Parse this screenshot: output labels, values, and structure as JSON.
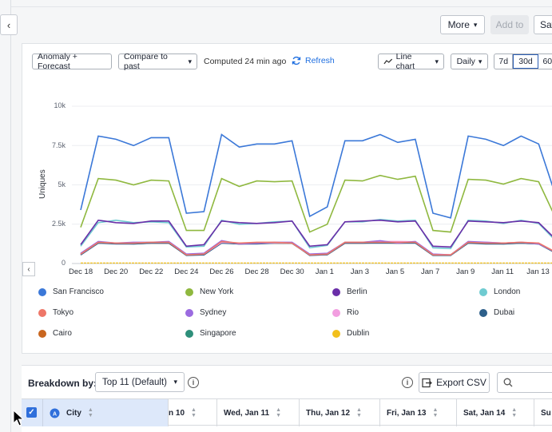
{
  "toolbar": {
    "more_label": "More",
    "add_to_label": "Add to",
    "save_label": "Sav"
  },
  "controls": {
    "anomaly_label": "Anomaly + Forecast",
    "compare_label": "Compare to past",
    "computed_text": "Computed 24 min ago",
    "refresh_label": "Refresh",
    "chart_type_label": "Line chart",
    "interval_label": "Daily",
    "ranges": [
      "7d",
      "30d",
      "60"
    ],
    "active_range": "30d"
  },
  "chart_data": {
    "type": "line",
    "ylabel": "Uniques",
    "y_ticks": [
      "10k",
      "7.5k",
      "5k",
      "2.5k",
      "0"
    ],
    "ylim": [
      0,
      10000
    ],
    "x_tick_labels": [
      "Dec 18",
      "Dec 20",
      "Dec 22",
      "Dec 24",
      "Dec 26",
      "Dec 28",
      "Dec 30",
      "Jan 1",
      "Jan 3",
      "Jan 5",
      "Jan 7",
      "Jan 9",
      "Jan 11",
      "Jan 13"
    ],
    "x": [
      "Dec 18",
      "Dec 19",
      "Dec 20",
      "Dec 21",
      "Dec 22",
      "Dec 23",
      "Dec 24",
      "Dec 25",
      "Dec 26",
      "Dec 27",
      "Dec 28",
      "Dec 29",
      "Dec 30",
      "Dec 31",
      "Jan 1",
      "Jan 2",
      "Jan 3",
      "Jan 4",
      "Jan 5",
      "Jan 6",
      "Jan 7",
      "Jan 8",
      "Jan 9",
      "Jan 10",
      "Jan 11",
      "Jan 12",
      "Jan 13",
      "Jan 14"
    ],
    "series": [
      {
        "name": "San Francisco",
        "color": "#3b78d8",
        "values": [
          3400,
          8100,
          7900,
          7500,
          8000,
          8000,
          3200,
          3300,
          8200,
          7400,
          7600,
          7600,
          7800,
          3000,
          3600,
          7800,
          7800,
          8200,
          7700,
          7900,
          3200,
          2900,
          8100,
          7900,
          7500,
          8100,
          7600,
          4200
        ]
      },
      {
        "name": "New York",
        "color": "#8fb83f",
        "values": [
          2300,
          5400,
          5300,
          5000,
          5300,
          5250,
          2100,
          2100,
          5400,
          4900,
          5250,
          5200,
          5250,
          2000,
          2500,
          5300,
          5250,
          5600,
          5350,
          5550,
          2100,
          2000,
          5350,
          5300,
          5050,
          5400,
          5200,
          2800
        ]
      },
      {
        "name": "Berlin",
        "color": "#6a2ea8",
        "values": [
          1200,
          2750,
          2600,
          2550,
          2700,
          2700,
          1100,
          1200,
          2700,
          2600,
          2550,
          2600,
          2700,
          1100,
          1200,
          2650,
          2700,
          2750,
          2650,
          2700,
          1100,
          1050,
          2700,
          2650,
          2600,
          2700,
          2600,
          1500
        ]
      },
      {
        "name": "London",
        "color": "#6fcbd1",
        "values": [
          1100,
          2600,
          2750,
          2600,
          2650,
          2600,
          1050,
          1100,
          2750,
          2500,
          2550,
          2650,
          2700,
          1000,
          1150,
          2650,
          2650,
          2800,
          2700,
          2750,
          1000,
          950,
          2750,
          2700,
          2550,
          2750,
          2550,
          1400
        ]
      },
      {
        "name": "Tokyo",
        "color": "#ee7768",
        "values": [
          600,
          1350,
          1300,
          1300,
          1350,
          1350,
          550,
          600,
          1400,
          1300,
          1350,
          1350,
          1300,
          550,
          600,
          1350,
          1350,
          1350,
          1350,
          1350,
          550,
          550,
          1350,
          1300,
          1300,
          1350,
          1300,
          700
        ]
      },
      {
        "name": "Sydney",
        "color": "#9b6be0",
        "values": [
          650,
          1400,
          1300,
          1350,
          1350,
          1400,
          600,
          650,
          1450,
          1250,
          1300,
          1350,
          1350,
          600,
          650,
          1350,
          1350,
          1450,
          1300,
          1400,
          600,
          550,
          1400,
          1350,
          1300,
          1350,
          1250,
          700
        ]
      },
      {
        "name": "Rio",
        "color": "#f29ee0",
        "values": [
          600,
          1350,
          1300,
          1300,
          1350,
          1350,
          580,
          600,
          1350,
          1300,
          1300,
          1320,
          1300,
          560,
          600,
          1350,
          1350,
          1400,
          1400,
          1380,
          580,
          560,
          1350,
          1350,
          1300,
          1350,
          1300,
          680
        ]
      },
      {
        "name": "Dubai",
        "color": "#2d5f8a",
        "values": [
          550,
          1300,
          1250,
          1250,
          1300,
          1300,
          520,
          550,
          1300,
          1250,
          1250,
          1300,
          1300,
          520,
          560,
          1300,
          1300,
          1300,
          1300,
          1300,
          520,
          520,
          1300,
          1250,
          1250,
          1300,
          1250,
          650
        ]
      },
      {
        "name": "Cairo",
        "color": "#c9661f",
        "values": [
          560,
          1320,
          1280,
          1260,
          1300,
          1300,
          540,
          560,
          1320,
          1250,
          1270,
          1300,
          1300,
          540,
          570,
          1300,
          1300,
          1320,
          1300,
          1320,
          540,
          530,
          1320,
          1270,
          1260,
          1320,
          1260,
          660
        ]
      },
      {
        "name": "Singapore",
        "color": "#2e8f7a",
        "values": [
          600,
          1300,
          1300,
          1250,
          1300,
          1300,
          560,
          580,
          1350,
          1250,
          1300,
          1300,
          1280,
          550,
          600,
          1300,
          1300,
          1350,
          1300,
          1320,
          560,
          540,
          1300,
          1300,
          1250,
          1300,
          1250,
          650
        ]
      },
      {
        "name": "Dublin",
        "color": "#f2c01c",
        "values": [
          30,
          30,
          30,
          30,
          30,
          30,
          30,
          30,
          30,
          30,
          30,
          30,
          30,
          30,
          30,
          30,
          30,
          30,
          30,
          30,
          30,
          30,
          30,
          30,
          30,
          30,
          30,
          30
        ]
      }
    ],
    "grid": true,
    "legend_position": "bottom"
  },
  "breakdown": {
    "label": "Breakdown by:",
    "select_value": "Top 11 (Default)",
    "export_label": "Export CSV"
  },
  "table": {
    "columns": [
      "City",
      "n 10",
      "Wed, Jan 11",
      "Thu, Jan 12",
      "Fri, Jan 13",
      "Sat, Jan 14",
      "Su"
    ]
  }
}
